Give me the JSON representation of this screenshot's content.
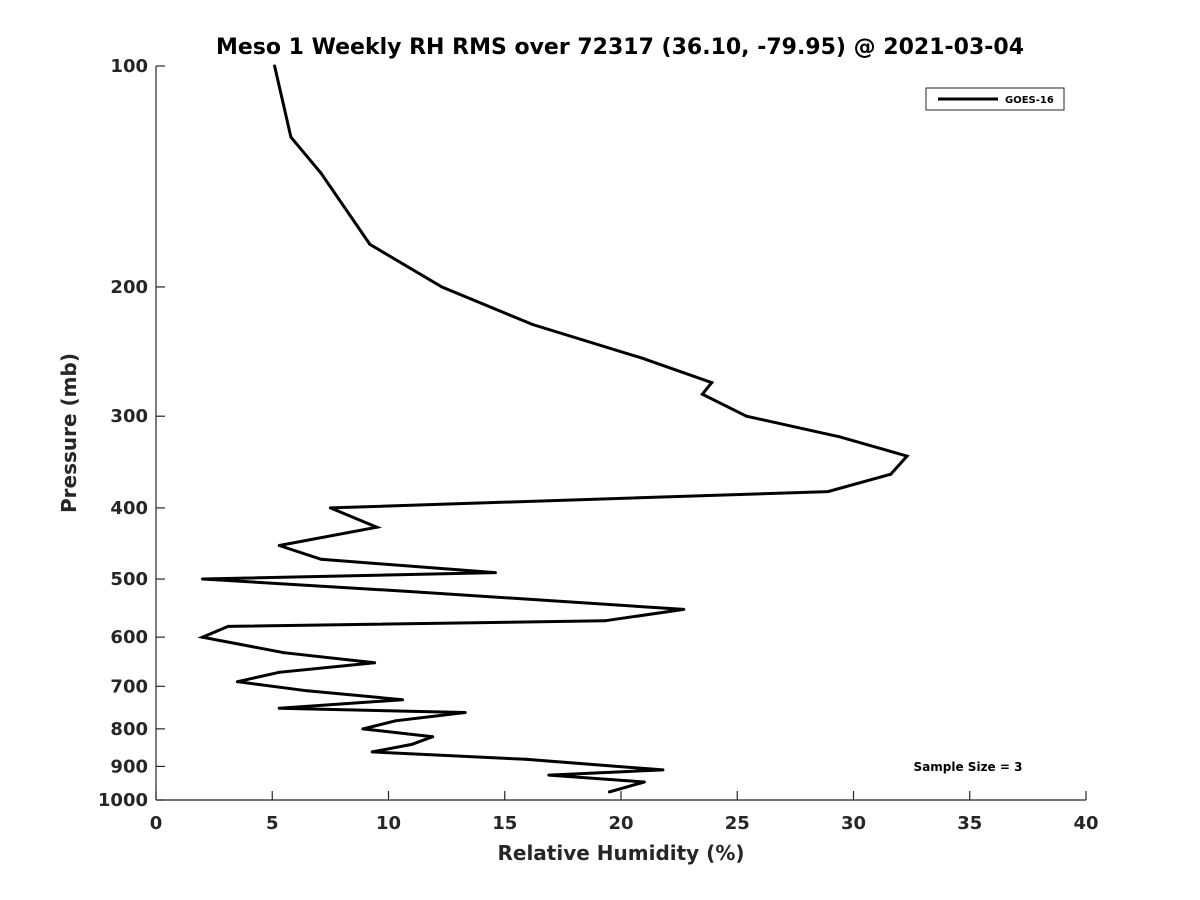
{
  "chart_data": {
    "type": "line",
    "title": "Meso 1 Weekly RH RMS over 72317 (36.10, -79.95) @ 2021-03-04",
    "xlabel": "Relative Humidity (%)",
    "ylabel": "Pressure (mb)",
    "xlim": [
      0,
      40
    ],
    "ylim": [
      100,
      1000
    ],
    "y_scale": "log",
    "y_reversed": true,
    "x_ticks": [
      "0",
      "5",
      "10",
      "15",
      "20",
      "25",
      "30",
      "35",
      "40"
    ],
    "y_ticks": [
      "100",
      "200",
      "300",
      "400",
      "500",
      "600",
      "700",
      "800",
      "900",
      "1000"
    ],
    "grid": false,
    "legend_position": "top-right",
    "series": [
      {
        "name": "GOES-16",
        "color": "#000000",
        "points": [
          [
            5.1,
            100
          ],
          [
            5.8,
            125
          ],
          [
            7.1,
            140
          ],
          [
            9.2,
            175
          ],
          [
            12.3,
            200
          ],
          [
            16.2,
            225
          ],
          [
            20.9,
            250
          ],
          [
            23.9,
            270
          ],
          [
            23.5,
            280
          ],
          [
            25.4,
            300
          ],
          [
            29.4,
            320
          ],
          [
            32.3,
            340
          ],
          [
            31.6,
            360
          ],
          [
            28.9,
            380
          ],
          [
            7.5,
            400
          ],
          [
            9.5,
            425
          ],
          [
            5.3,
            450
          ],
          [
            7.1,
            470
          ],
          [
            14.6,
            490
          ],
          [
            2.0,
            500
          ],
          [
            10.9,
            520
          ],
          [
            22.7,
            550
          ],
          [
            19.3,
            570
          ],
          [
            3.1,
            580
          ],
          [
            2.0,
            600
          ],
          [
            5.5,
            630
          ],
          [
            9.4,
            650
          ],
          [
            5.3,
            670
          ],
          [
            3.5,
            690
          ],
          [
            6.5,
            710
          ],
          [
            10.6,
            730
          ],
          [
            5.3,
            750
          ],
          [
            13.3,
            760
          ],
          [
            10.3,
            780
          ],
          [
            8.9,
            800
          ],
          [
            11.9,
            820
          ],
          [
            11.0,
            840
          ],
          [
            9.3,
            860
          ],
          [
            15.9,
            880
          ],
          [
            21.8,
            910
          ],
          [
            16.9,
            925
          ],
          [
            21.0,
            945
          ],
          [
            19.5,
            975
          ]
        ]
      }
    ],
    "annotations": [
      "Sample Size = 3"
    ]
  }
}
